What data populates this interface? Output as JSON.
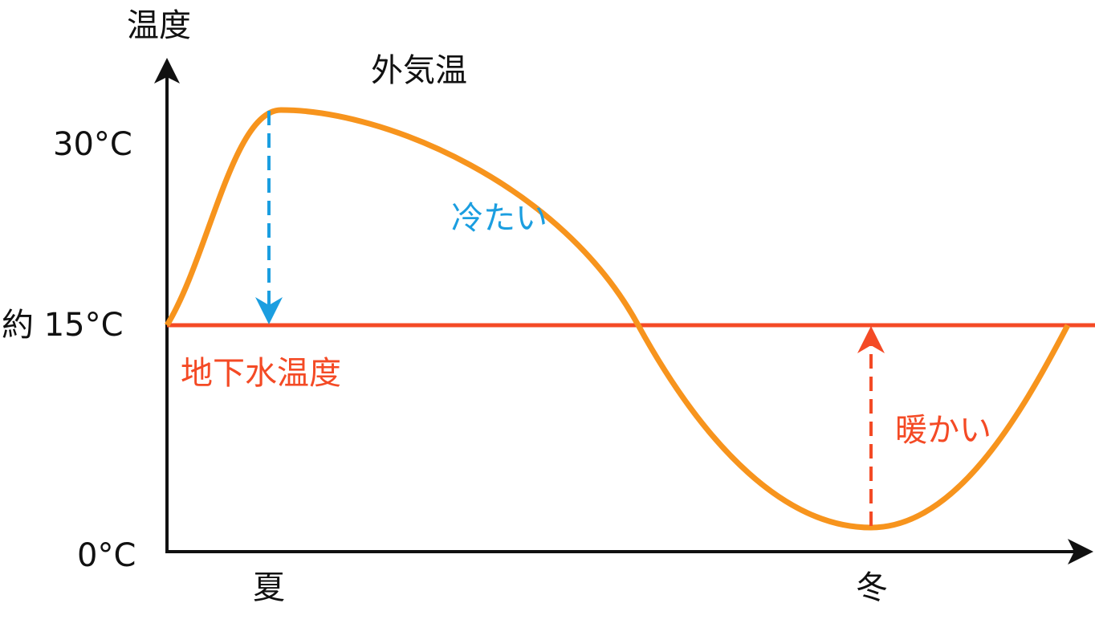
{
  "chart_data": {
    "type": "line",
    "ylabel": "温度",
    "y_ticks": [
      "30°C",
      "約 15°C",
      "0°C"
    ],
    "x_ticks": [
      "夏",
      "冬"
    ],
    "grid": false,
    "series": [
      {
        "name": "外気温",
        "color": "#F7941D",
        "shape": "wave",
        "max_at": "夏",
        "min_at": "冬"
      },
      {
        "name": "地下水温度",
        "color": "#F44A25",
        "value": 15
      }
    ],
    "annotations": [
      {
        "text": "冷たい",
        "color": "#1B9EE0",
        "direction": "down",
        "at": "夏"
      },
      {
        "text": "暖かい",
        "color": "#F44A25",
        "direction": "up",
        "at": "冬"
      }
    ]
  }
}
